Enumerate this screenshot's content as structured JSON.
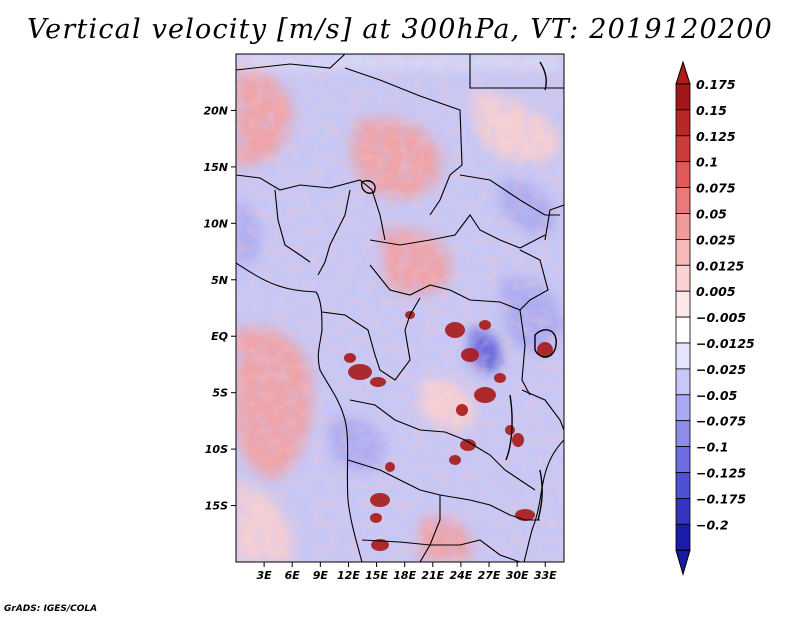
{
  "title": "Vertical velocity [m/s] at 300hPa, VT: 2019120200",
  "credit": "GrADS: IGES/COLA",
  "map": {
    "lat_range": [
      -20,
      25
    ],
    "lon_range": [
      0,
      35
    ],
    "lat_ticks": [
      {
        "value": 20,
        "label": "20N"
      },
      {
        "value": 15,
        "label": "15N"
      },
      {
        "value": 10,
        "label": "10N"
      },
      {
        "value": 5,
        "label": "5N"
      },
      {
        "value": 0,
        "label": "EQ"
      },
      {
        "value": -5,
        "label": "5S"
      },
      {
        "value": -10,
        "label": "10S"
      },
      {
        "value": -15,
        "label": "15S"
      }
    ],
    "lon_ticks": [
      {
        "value": 3,
        "label": "3E"
      },
      {
        "value": 6,
        "label": "6E"
      },
      {
        "value": 9,
        "label": "9E"
      },
      {
        "value": 12,
        "label": "12E"
      },
      {
        "value": 15,
        "label": "15E"
      },
      {
        "value": 18,
        "label": "18E"
      },
      {
        "value": 21,
        "label": "21E"
      },
      {
        "value": 24,
        "label": "24E"
      },
      {
        "value": 27,
        "label": "27E"
      },
      {
        "value": 30,
        "label": "30E"
      },
      {
        "value": 33,
        "label": "33E"
      }
    ]
  },
  "colorbar": {
    "levels": [
      {
        "label": "0.175",
        "color": "#a01818"
      },
      {
        "label": "0.15",
        "color": "#b82828"
      },
      {
        "label": "0.125",
        "color": "#cc3c3c"
      },
      {
        "label": "0.1",
        "color": "#dc5a5a"
      },
      {
        "label": "0.075",
        "color": "#e87a7a"
      },
      {
        "label": "0.05",
        "color": "#f09a9a"
      },
      {
        "label": "0.025",
        "color": "#f6b8b8"
      },
      {
        "label": "0.0125",
        "color": "#fad2d2"
      },
      {
        "label": "0.005",
        "color": "#fce8e8"
      },
      {
        "label": "−0.005",
        "color": "#ffffff"
      },
      {
        "label": "−0.0125",
        "color": "#e4e4fc"
      },
      {
        "label": "−0.025",
        "color": "#c8c8f8"
      },
      {
        "label": "−0.05",
        "color": "#aaaaf2"
      },
      {
        "label": "−0.075",
        "color": "#8c8cea"
      },
      {
        "label": "−0.1",
        "color": "#6e6ee0"
      },
      {
        "label": "−0.125",
        "color": "#5050d2"
      },
      {
        "label": "−0.175",
        "color": "#3434be"
      },
      {
        "label": "−0.2",
        "color": "#1c1ca8"
      }
    ],
    "top_color": "#b01c1c",
    "bottom_color": "#1a1aa0"
  },
  "field_colors": {
    "strong_up": "#a81c1c",
    "up": "#f2a0a0",
    "weak_up": "#f9d0d0",
    "neutral": "#ffffff",
    "weak_down": "#dadaf8",
    "down": "#a8a8f0",
    "strong_down": "#5a5ad8"
  }
}
